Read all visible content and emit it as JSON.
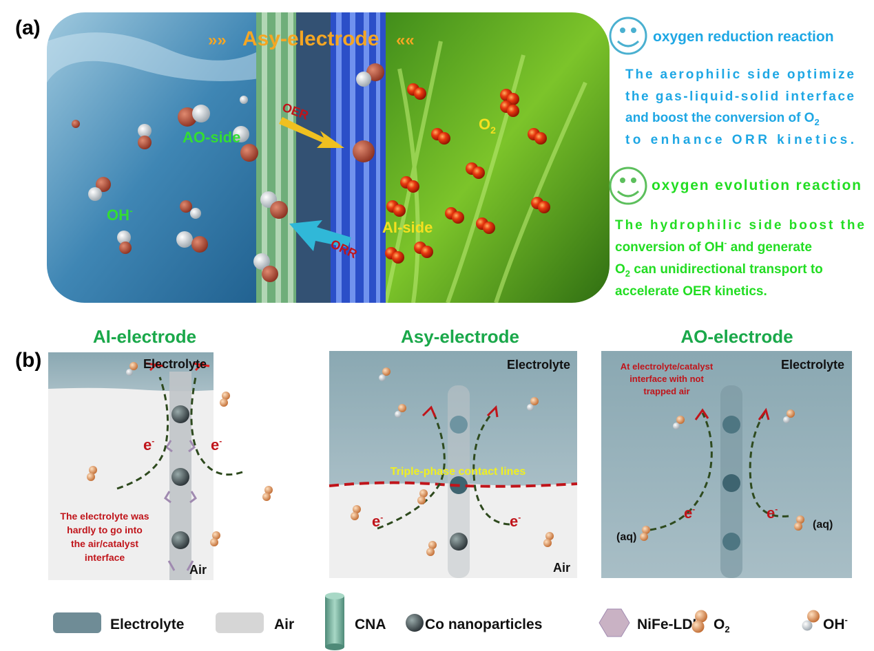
{
  "panel_a": {
    "label": "(a)",
    "title": "Asy-electrode",
    "labels": {
      "oer": "OER",
      "orr": "ORR",
      "ao_side": "AO-side",
      "ai_side": "AI-side",
      "o2": "O",
      "o2_sub": "2",
      "oh": "OH",
      "oh_sup": "-"
    },
    "orr_heading": "oxygen reduction reaction",
    "orr_lines": [
      "The aerophilic side optimize",
      "the gas-liquid-solid interface",
      "and boost the conversion of O",
      "to enhance ORR kinetics."
    ],
    "orr_sub": "2",
    "oer_heading": "oxygen evolution reaction",
    "oer_lines": [
      "The hydrophilic side boost the",
      "conversion of OH",
      " and generate",
      "O",
      " can unidirectional transport to",
      "accelerate OER kinetics."
    ],
    "oer_sup": "-",
    "oer_sub": "2",
    "colors": {
      "orr": "#1ea7e4",
      "oer": "#22dd22",
      "title": "#f5a623"
    }
  },
  "panel_b": {
    "label": "(b)",
    "panels": [
      {
        "title": "AI-electrode",
        "top": "Electrolyte",
        "bottom": "Air",
        "note": [
          "The electrolyte was",
          "hardly to go into",
          "the air/catalyst",
          "interface"
        ],
        "e": "e",
        "sup": "-"
      },
      {
        "title": "Asy-electrode",
        "top": "Electrolyte",
        "bottom": "Air",
        "note": [
          "Triple-phase contact lines"
        ],
        "e": "e",
        "sup": "-"
      },
      {
        "title": "AO-electrode",
        "top": "Electrolyte",
        "note": [
          "At electrolyte/catalyst",
          "interface with not",
          "trapped air"
        ],
        "e": "e",
        "sup": "-",
        "aq": "(aq)"
      }
    ],
    "colors": {
      "title": "#1aa84a",
      "note": "#c0141a",
      "triple": "#f0f020",
      "electron_path": "#2e4a1e"
    }
  },
  "legend": {
    "items": [
      {
        "label": "Electrolyte",
        "icon": "electrolyte-swatch"
      },
      {
        "label": "Air",
        "icon": "air-swatch"
      },
      {
        "label": "CNA",
        "icon": "cylinder"
      },
      {
        "label": "Co nanoparticles",
        "icon": "sphere"
      },
      {
        "label": "NiFe-LDH",
        "icon": "hexagon"
      },
      {
        "label": "O",
        "sub": "2",
        "icon": "o2-molecule"
      },
      {
        "label": "OH",
        "sup": "-",
        "icon": "oh-molecule"
      }
    ]
  }
}
